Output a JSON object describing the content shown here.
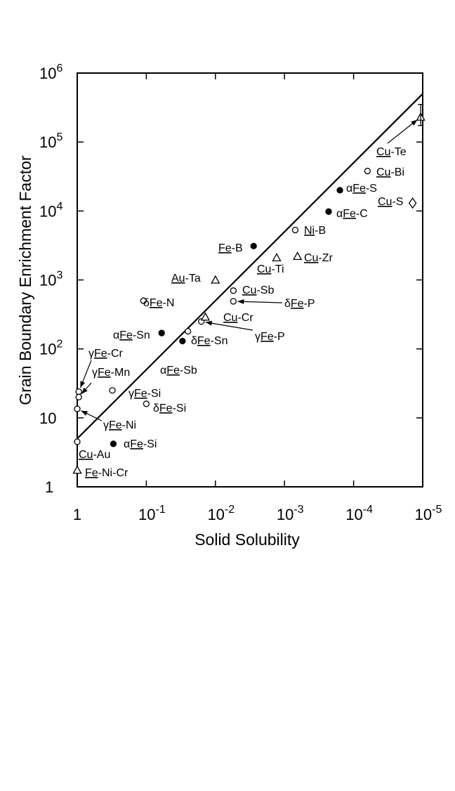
{
  "chart_data": {
    "type": "scatter",
    "title": "",
    "xlabel": "Solid Solubility",
    "ylabel": "Grain Boundary Enrichment Factor",
    "x_scale": "log",
    "x_reversed": true,
    "y_scale": "log",
    "xlim": [
      1,
      1e-05
    ],
    "ylim": [
      1,
      1000000
    ],
    "grid": false,
    "x_ticks": [
      {
        "value": 1,
        "base": "1",
        "exp": ""
      },
      {
        "value": 0.1,
        "base": "10",
        "exp": "-1"
      },
      {
        "value": 0.01,
        "base": "10",
        "exp": "-2"
      },
      {
        "value": 0.001,
        "base": "10",
        "exp": "-3"
      },
      {
        "value": 0.0001,
        "base": "10",
        "exp": "-4"
      },
      {
        "value": 1e-05,
        "base": "10",
        "exp": "-5"
      }
    ],
    "y_ticks": [
      {
        "value": 1,
        "base": "1",
        "exp": ""
      },
      {
        "value": 10,
        "base": "10",
        "exp": ""
      },
      {
        "value": 100,
        "base": "10",
        "exp": "2"
      },
      {
        "value": 1000,
        "base": "10",
        "exp": "3"
      },
      {
        "value": 10000,
        "base": "10",
        "exp": "4"
      },
      {
        "value": 100000,
        "base": "10",
        "exp": "5"
      },
      {
        "value": 1000000,
        "base": "10",
        "exp": "6"
      }
    ],
    "fit_line": {
      "x": [
        1,
        1e-05
      ],
      "y": [
        5,
        500000
      ]
    },
    "points": [
      {
        "x": 1.0,
        "y": 4.5,
        "marker": "open-circle",
        "label": {
          "pre": "",
          "ul": "Cu",
          "post": "-Au"
        }
      },
      {
        "x": 1.0,
        "y": 1.75,
        "marker": "open-triangle",
        "label": {
          "pre": "",
          "ul": "Fe",
          "post": "-Ni-Cr"
        }
      },
      {
        "x": 0.95,
        "y": 24,
        "marker": "open-circle",
        "label": {
          "pre": "γ",
          "ul": "Fe",
          "post": "-Cr"
        }
      },
      {
        "x": 0.95,
        "y": 20,
        "marker": "open-circle",
        "label": {
          "pre": "γ",
          "ul": "Fe",
          "post": "-Mn"
        }
      },
      {
        "x": 1.0,
        "y": 13.5,
        "marker": "open-circle",
        "label": {
          "pre": "γ",
          "ul": "Fe",
          "post": "-Ni"
        }
      },
      {
        "x": 0.3,
        "y": 4.2,
        "marker": "filled-circle",
        "label": {
          "pre": "α",
          "ul": "Fe",
          "post": "-Si"
        }
      },
      {
        "x": 0.31,
        "y": 25,
        "marker": "open-circle",
        "label": {
          "pre": "γ",
          "ul": "Fe",
          "post": "-Si"
        }
      },
      {
        "x": 0.1,
        "y": 16,
        "marker": "open-circle",
        "label": {
          "pre": "δ",
          "ul": "Fe",
          "post": "-Si"
        }
      },
      {
        "x": 0.06,
        "y": 170,
        "marker": "filled-circle",
        "label": {
          "pre": "α",
          "ul": "Fe",
          "post": "-Sn"
        }
      },
      {
        "x": 0.025,
        "y": 180,
        "marker": "open-circle",
        "label": {
          "pre": "",
          "ul": "",
          "post": ""
        }
      },
      {
        "x": 0.03,
        "y": 130,
        "marker": "filled-circle",
        "label": {
          "pre": "δ",
          "ul": "Fe",
          "post": "-Sn"
        }
      },
      {
        "x": 0.016,
        "y": 250,
        "marker": "open-circle",
        "label": {
          "pre": "γ",
          "ul": "Fe",
          "post": "-P"
        }
      },
      {
        "x": 0.0055,
        "y": 700,
        "marker": "open-circle",
        "label": {
          "pre": "",
          "ul": "Cu",
          "post": "-Sb"
        }
      },
      {
        "x": 0.0055,
        "y": 490,
        "marker": "open-circle",
        "label": {
          "pre": "δ",
          "ul": "Fe",
          "post": "-P"
        }
      },
      {
        "x": 0.014,
        "y": 290,
        "marker": "open-triangle",
        "label": {
          "pre": "",
          "ul": "Cu",
          "post": "-Cr"
        }
      },
      {
        "x": 0.11,
        "y": 500,
        "marker": "open-circle",
        "label": {
          "pre": "δ",
          "ul": "Fe",
          "post": "-N"
        }
      },
      {
        "x": 0.01,
        "y": 1000,
        "marker": "open-triangle",
        "label": {
          "pre": "",
          "ul": "Au",
          "post": "-Ta"
        }
      },
      {
        "x": 0.0028,
        "y": 3100,
        "marker": "filled-circle",
        "label": {
          "pre": "",
          "ul": "Fe",
          "post": "-B"
        }
      },
      {
        "x": 0.0013,
        "y": 2100,
        "marker": "open-triangle",
        "label": {
          "pre": "",
          "ul": "Cu",
          "post": "-Ti"
        }
      },
      {
        "x": 0.00065,
        "y": 2200,
        "marker": "open-triangle",
        "label": {
          "pre": "",
          "ul": "Cu",
          "post": "-Zr"
        }
      },
      {
        "x": 0.0007,
        "y": 5300,
        "marker": "open-circle",
        "label": {
          "pre": "",
          "ul": "Ni",
          "post": "-B"
        }
      },
      {
        "x": 0.00023,
        "y": 9800,
        "marker": "filled-circle",
        "label": {
          "pre": "α",
          "ul": "Fe",
          "post": "-C"
        }
      },
      {
        "x": 0.000158,
        "y": 20000,
        "marker": "filled-circle",
        "label": {
          "pre": "α",
          "ul": "Fe",
          "post": "-S"
        }
      },
      {
        "x": 6.3e-05,
        "y": 38000,
        "marker": "open-circle",
        "label": {
          "pre": "",
          "ul": "Cu",
          "post": "-Bi"
        }
      },
      {
        "x": 1.4e-05,
        "y": 13000,
        "marker": "open-diamond",
        "label": {
          "pre": "",
          "ul": "Cu",
          "post": "-S"
        }
      },
      {
        "x": 1.07e-05,
        "y": 230000,
        "marker": "open-triangle",
        "label": {
          "pre": "",
          "ul": "Cu",
          "post": "-Te"
        }
      }
    ],
    "free_labels": [
      {
        "pre": "α",
        "ul": "Fe",
        "post": "-Sb"
      }
    ]
  }
}
